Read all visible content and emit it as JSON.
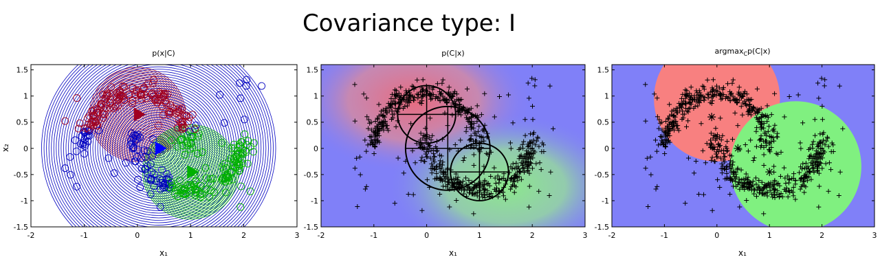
{
  "figure_title": "Covariance type: I",
  "chart_data": [
    {
      "type": "scatter",
      "panel": "left",
      "title": "p(x|C)",
      "xlabel": "x₁",
      "ylabel": "x₂",
      "xlim": [
        -2,
        3
      ],
      "ylim": [
        -1.5,
        1.6
      ],
      "xticks": [
        "-2",
        "-1",
        "0",
        "1",
        "2",
        "3"
      ],
      "yticks": [
        "1.5",
        "1",
        "0.5",
        "0",
        "-0.5",
        "-1",
        "-1.5"
      ],
      "marker": "circle",
      "description_series": [
        {
          "name": "",
          "color": "#a00020",
          "center": [
            0,
            0.65
          ],
          "sigma": 0.55
        },
        {
          "name": "",
          "color": "#0000c0",
          "center": [
            0.4,
            0.0
          ],
          "sigma": 1.2
        },
        {
          "name": "",
          "color": "#00b000",
          "center": [
            1.0,
            -0.45
          ],
          "sigma": 0.55
        }
      ],
      "means": [
        {
          "x": 0.0,
          "y": 0.65,
          "color": "#a00020"
        },
        {
          "x": 0.4,
          "y": 0.0,
          "color": "#0000ff"
        },
        {
          "x": 1.0,
          "y": -0.45,
          "color": "#00b000"
        }
      ]
    },
    {
      "type": "scatter",
      "panel": "middle",
      "title": "p(C|x)",
      "xlabel": "x₁",
      "ylabel": "",
      "xlim": [
        -2,
        3
      ],
      "ylim": [
        -1.5,
        1.6
      ],
      "xticks": [
        "-2",
        "-1",
        "0",
        "1",
        "2",
        "3"
      ],
      "yticks": [
        "1.5",
        "1",
        "0.5",
        "0",
        "-0.5",
        "-1",
        "-1.5"
      ],
      "marker": "plus",
      "component_circles": [
        {
          "cx": 0.0,
          "cy": 0.65,
          "r": 0.55
        },
        {
          "cx": 0.4,
          "cy": 0.0,
          "r": 0.8
        },
        {
          "cx": 1.0,
          "cy": -0.45,
          "r": 0.55
        }
      ]
    },
    {
      "type": "scatter",
      "panel": "right",
      "title": "argmax",
      "title_sub": "C",
      "title_tail": "p(C|x)",
      "xlabel": "x₁",
      "ylabel": "",
      "xlim": [
        -2,
        3
      ],
      "ylim": [
        -1.5,
        1.6
      ],
      "xticks": [
        "-2",
        "-1",
        "0",
        "1",
        "2",
        "3"
      ],
      "yticks": [
        "1.5",
        "1",
        "0.5",
        "0",
        "-0.5",
        "-1",
        "-1.5"
      ],
      "marker": "plus",
      "regions": [
        {
          "color": "#8080f8",
          "label": "background"
        },
        {
          "color": "#f88080",
          "cx": 0.0,
          "cy": 0.95,
          "r": 1.2
        },
        {
          "color": "#80f080",
          "cx": 1.5,
          "cy": -0.35,
          "r": 1.25
        }
      ],
      "means": [
        {
          "x": -0.1,
          "y": 0.6
        },
        {
          "x": 0.4,
          "y": 0.0
        },
        {
          "x": 1.0,
          "y": -0.45
        }
      ]
    }
  ],
  "colors": {
    "red": "#f88080",
    "green": "#80f080",
    "blue": "#8080f8"
  }
}
